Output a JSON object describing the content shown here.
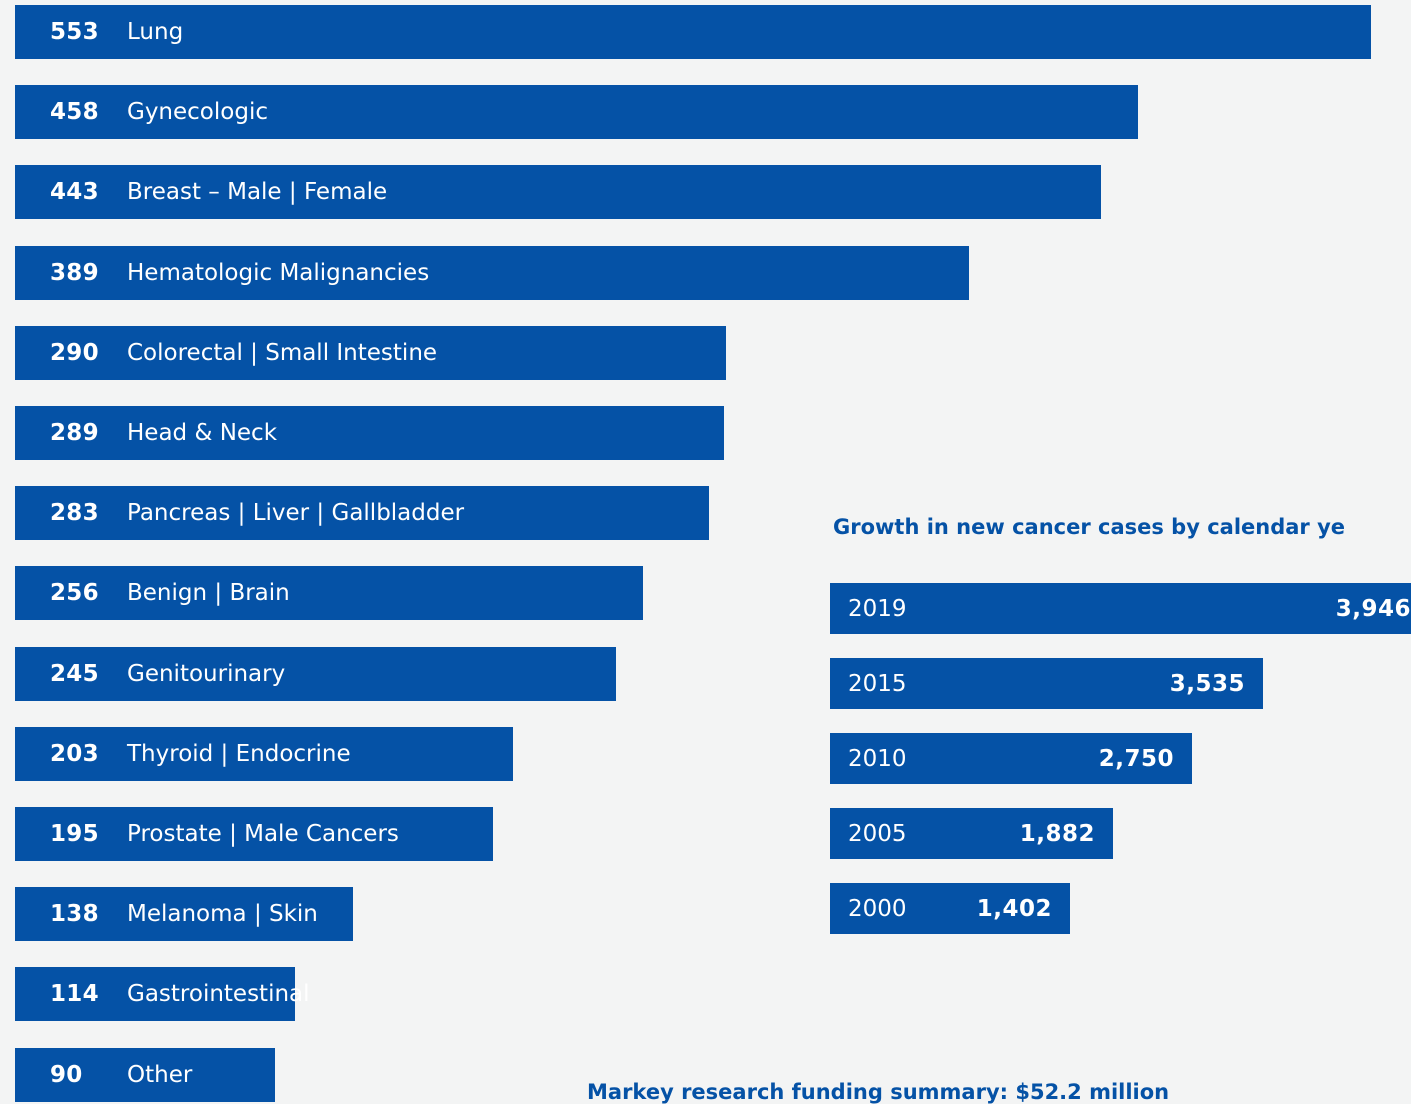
{
  "chart_data": [
    {
      "type": "bar",
      "orientation": "horizontal",
      "categories": [
        "Lung",
        "Gynecologic",
        "Breast – Male  |  Female",
        "Hematologic Malignancies",
        "Colorectal  |  Small Intestine",
        "Head & Neck",
        "Pancreas  |  Liver  |  Gallbladder",
        "Benign  |  Brain",
        "Genitourinary",
        "Thyroid  |  Endocrine",
        "Prostate  |  Male Cancers",
        "Melanoma  |  Skin",
        "Gastrointestinal",
        "Other"
      ],
      "values": [
        553,
        458,
        443,
        389,
        290,
        289,
        283,
        256,
        245,
        203,
        195,
        138,
        114,
        90
      ],
      "labels": [
        "553",
        "458",
        "443",
        "389",
        "290",
        "289",
        "283",
        "256",
        "245",
        "203",
        "195",
        "138",
        "114",
        "90"
      ],
      "bar_color": "#0552a6"
    },
    {
      "type": "bar",
      "orientation": "horizontal",
      "title": "Growth in new cancer cases by calendar ye",
      "categories": [
        "2019",
        "2015",
        "2010",
        "2005",
        "2000"
      ],
      "values": [
        3946,
        3535,
        2750,
        1882,
        1402
      ],
      "labels": [
        "3,946",
        "3,535",
        "2,750",
        "1,882",
        "1,402"
      ],
      "bar_color": "#0552a6"
    }
  ],
  "footer_heading": "Markey research funding summary: $52.2 million",
  "colors": {
    "background": "#f3f4f4",
    "accent": "#0552a6",
    "bar_text": "#ffffff"
  }
}
